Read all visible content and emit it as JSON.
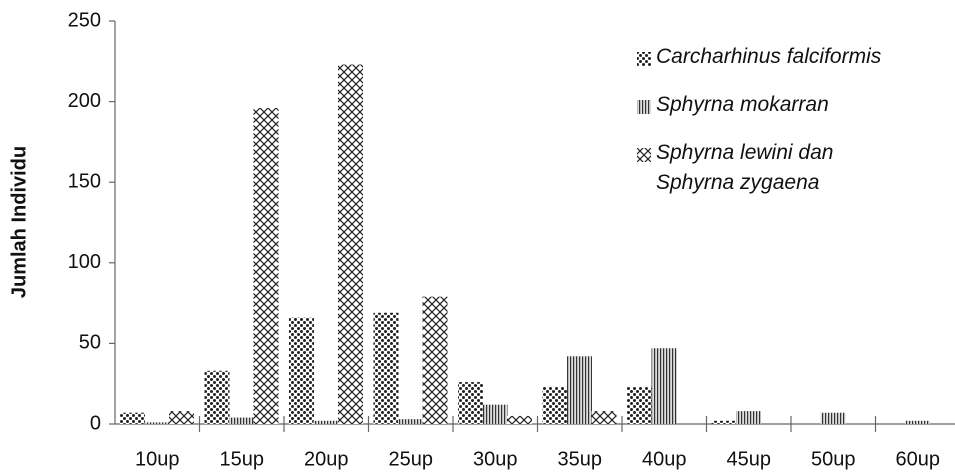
{
  "chart_data": {
    "type": "bar",
    "y_label": "Jumlah Individu",
    "categories": [
      "10up",
      "15up",
      "20up",
      "25up",
      "30up",
      "35up",
      "40up",
      "45up",
      "50up",
      "60up"
    ],
    "series": [
      {
        "name": "Carcharhinus falciformis",
        "color": "#222222",
        "pattern": "dots",
        "values": [
          7,
          33,
          66,
          69,
          26,
          23,
          23,
          2,
          0,
          0
        ]
      },
      {
        "name": "Sphyrna mokarran",
        "color": "#333333",
        "pattern": "vertical-lines",
        "values": [
          1,
          4,
          2,
          3,
          12,
          42,
          47,
          8,
          7,
          2
        ]
      },
      {
        "name": "Sphyrna lewini dan Sphyrna zygaena",
        "color": "#222222",
        "pattern": "crosshatch",
        "values": [
          8,
          196,
          223,
          79,
          5,
          8,
          0,
          0,
          0,
          0
        ]
      }
    ],
    "ylim": [
      0,
      250
    ],
    "yticks": [
      0,
      50,
      100,
      150,
      200,
      250
    ],
    "legend": "right"
  }
}
